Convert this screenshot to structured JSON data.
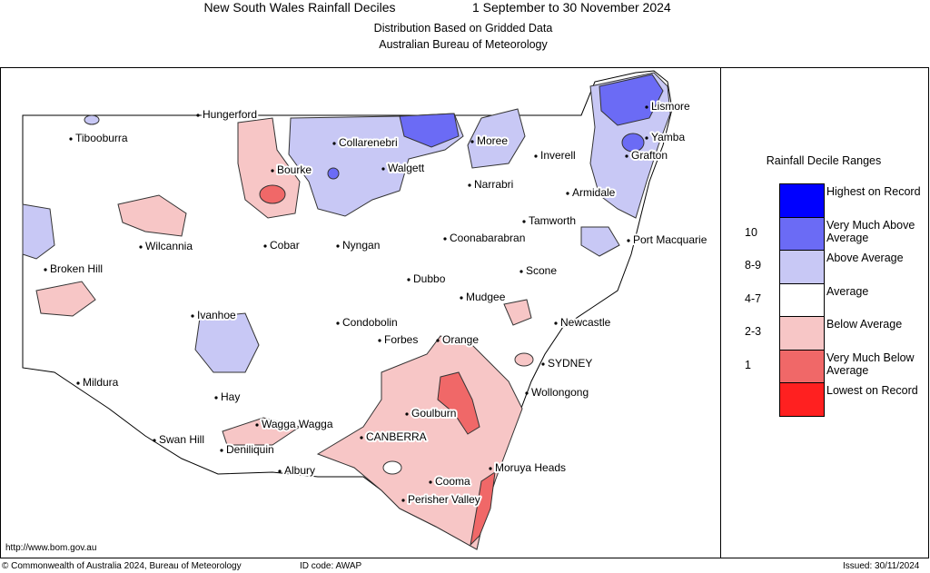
{
  "header": {
    "title": "New South Wales Rainfall Deciles",
    "period": "1 September to 30 November 2024",
    "subtitle": "Distribution Based on Gridded Data",
    "source": "Australian Bureau of Meteorology"
  },
  "places": [
    "Hungerford",
    "Tibooburra",
    "Collarenebri",
    "Moree",
    "Inverell",
    "Lismore",
    "Yamba",
    "Grafton",
    "Bourke",
    "Walgett",
    "Narrabri",
    "Armidale",
    "Tamworth",
    "Wilcannia",
    "Cobar",
    "Nyngan",
    "Coonabarabran",
    "Port Macquarie",
    "Broken Hill",
    "Scone",
    "Dubbo",
    "Mudgee",
    "Ivanhoe",
    "Condobolin",
    "Newcastle",
    "Forbes",
    "Orange",
    "SYDNEY",
    "Mildura",
    "Wollongong",
    "Hay",
    "Goulburn",
    "Wagga Wagga",
    "Swan Hill",
    "CANBERRA",
    "Deniliquin",
    "Albury",
    "Moruya Heads",
    "Cooma",
    "Perisher Valley"
  ],
  "legend": {
    "title": "Rainfall Decile Ranges",
    "items": [
      {
        "name": "Highest on Record",
        "range": null,
        "color": "#0000ff"
      },
      {
        "name": "Very Much Above Average",
        "range": "10",
        "color": "#6b6bf5"
      },
      {
        "name": "Above Average",
        "range": "8-9",
        "color": "#c8c8f5"
      },
      {
        "name": "Average",
        "range": "4-7",
        "color": "#ffffff"
      },
      {
        "name": "Below Average",
        "range": "2-3",
        "color": "#f7c6c6"
      },
      {
        "name": "Very Much Below Average",
        "range": "1",
        "color": "#f06868"
      },
      {
        "name": "Lowest on Record",
        "range": null,
        "color": "#ff2020"
      }
    ]
  },
  "footer": {
    "url": "http://www.bom.gov.au",
    "copyright": "© Commonwealth of Australia 2024, Bureau of Meteorology",
    "id_code": "ID code: AWAP",
    "issued": "Issued: 30/11/2024"
  }
}
